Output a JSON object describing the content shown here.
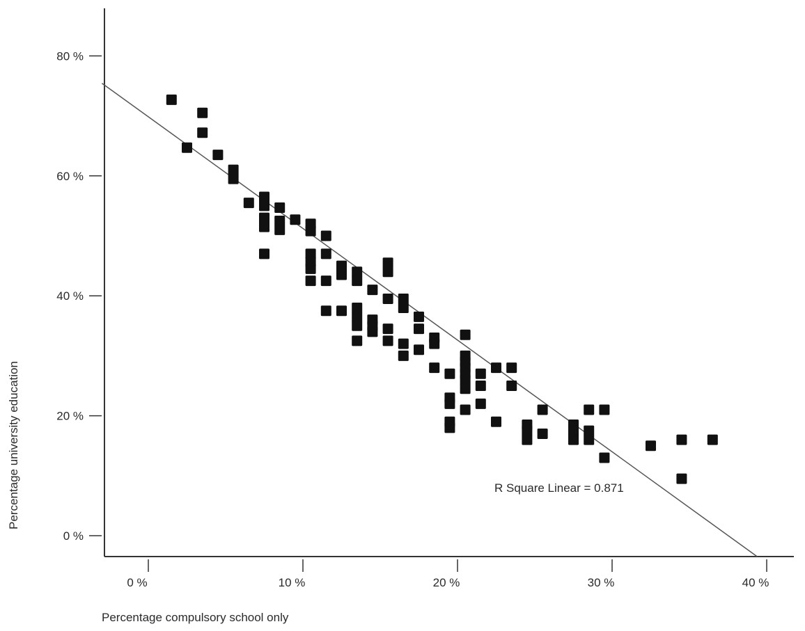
{
  "chart_data": {
    "type": "scatter",
    "xlabel": "Percentage compulsory school only",
    "ylabel": "Percentage university education",
    "xlim": [
      -3,
      41
    ],
    "ylim": [
      -3,
      83
    ],
    "x_ticks": [
      0,
      10,
      20,
      30,
      40
    ],
    "x_tick_labels": [
      "0 %",
      "10 %",
      "20 %",
      "30 %",
      "40 %"
    ],
    "y_ticks": [
      0,
      20,
      40,
      60,
      80
    ],
    "y_tick_labels": [
      "0 %",
      "20 %",
      "40 %",
      "60 %",
      "80 %"
    ],
    "grid": false,
    "annotation": "R Square Linear = 0.871",
    "fit_line": {
      "intercept": 70.1,
      "slope": -1.78
    },
    "points": [
      [
        1.5,
        72.7
      ],
      [
        3.5,
        70.5
      ],
      [
        3.5,
        67.2
      ],
      [
        2.5,
        64.7
      ],
      [
        4.5,
        63.5
      ],
      [
        5.5,
        61.0
      ],
      [
        5.5,
        59.5
      ],
      [
        6.5,
        55.5
      ],
      [
        7.5,
        56.5
      ],
      [
        7.5,
        55.0
      ],
      [
        7.5,
        53.0
      ],
      [
        7.5,
        51.5
      ],
      [
        7.5,
        47.0
      ],
      [
        8.5,
        54.7
      ],
      [
        8.5,
        52.5
      ],
      [
        8.5,
        51.0
      ],
      [
        9.5,
        52.7
      ],
      [
        10.5,
        52.0
      ],
      [
        10.5,
        50.8
      ],
      [
        10.5,
        47.0
      ],
      [
        10.5,
        45.7
      ],
      [
        10.5,
        44.5
      ],
      [
        10.5,
        42.5
      ],
      [
        11.5,
        50.0
      ],
      [
        11.5,
        47.0
      ],
      [
        11.5,
        42.5
      ],
      [
        11.5,
        37.5
      ],
      [
        12.5,
        45.0
      ],
      [
        12.5,
        43.5
      ],
      [
        12.5,
        37.5
      ],
      [
        13.5,
        44.0
      ],
      [
        13.5,
        42.5
      ],
      [
        13.5,
        38.0
      ],
      [
        13.5,
        36.5
      ],
      [
        13.5,
        35.0
      ],
      [
        13.5,
        32.5
      ],
      [
        14.5,
        41.0
      ],
      [
        14.5,
        36.0
      ],
      [
        14.5,
        35.0
      ],
      [
        14.5,
        34.0
      ],
      [
        15.5,
        45.5
      ],
      [
        15.5,
        44.0
      ],
      [
        15.5,
        39.5
      ],
      [
        15.5,
        34.5
      ],
      [
        15.5,
        32.5
      ],
      [
        16.5,
        39.5
      ],
      [
        16.5,
        38.0
      ],
      [
        16.5,
        32.0
      ],
      [
        16.5,
        30.0
      ],
      [
        17.5,
        36.5
      ],
      [
        17.5,
        34.5
      ],
      [
        17.5,
        31.0
      ],
      [
        18.5,
        33.0
      ],
      [
        18.5,
        32.0
      ],
      [
        18.5,
        28.0
      ],
      [
        19.5,
        27.0
      ],
      [
        19.5,
        23.0
      ],
      [
        19.5,
        22.0
      ],
      [
        19.5,
        19.0
      ],
      [
        19.5,
        18.0
      ],
      [
        20.5,
        33.5
      ],
      [
        20.5,
        30.0
      ],
      [
        20.5,
        29.0
      ],
      [
        20.5,
        28.0
      ],
      [
        20.5,
        27.0
      ],
      [
        20.5,
        26.0
      ],
      [
        20.5,
        24.5
      ],
      [
        20.5,
        21.0
      ],
      [
        21.5,
        27.0
      ],
      [
        21.5,
        25.0
      ],
      [
        21.5,
        22.0
      ],
      [
        22.5,
        28.0
      ],
      [
        22.5,
        19.0
      ],
      [
        23.5,
        28.0
      ],
      [
        23.5,
        25.0
      ],
      [
        24.5,
        18.5
      ],
      [
        24.5,
        17.5
      ],
      [
        24.5,
        16.0
      ],
      [
        25.5,
        21.0
      ],
      [
        25.5,
        17.0
      ],
      [
        27.5,
        18.5
      ],
      [
        27.5,
        17.5
      ],
      [
        27.5,
        16.0
      ],
      [
        28.5,
        21.0
      ],
      [
        28.5,
        17.5
      ],
      [
        28.5,
        16.0
      ],
      [
        29.5,
        21.0
      ],
      [
        29.5,
        13.0
      ],
      [
        32.5,
        15.0
      ],
      [
        34.5,
        16.0
      ],
      [
        34.5,
        9.5
      ],
      [
        36.5,
        16.0
      ]
    ]
  }
}
